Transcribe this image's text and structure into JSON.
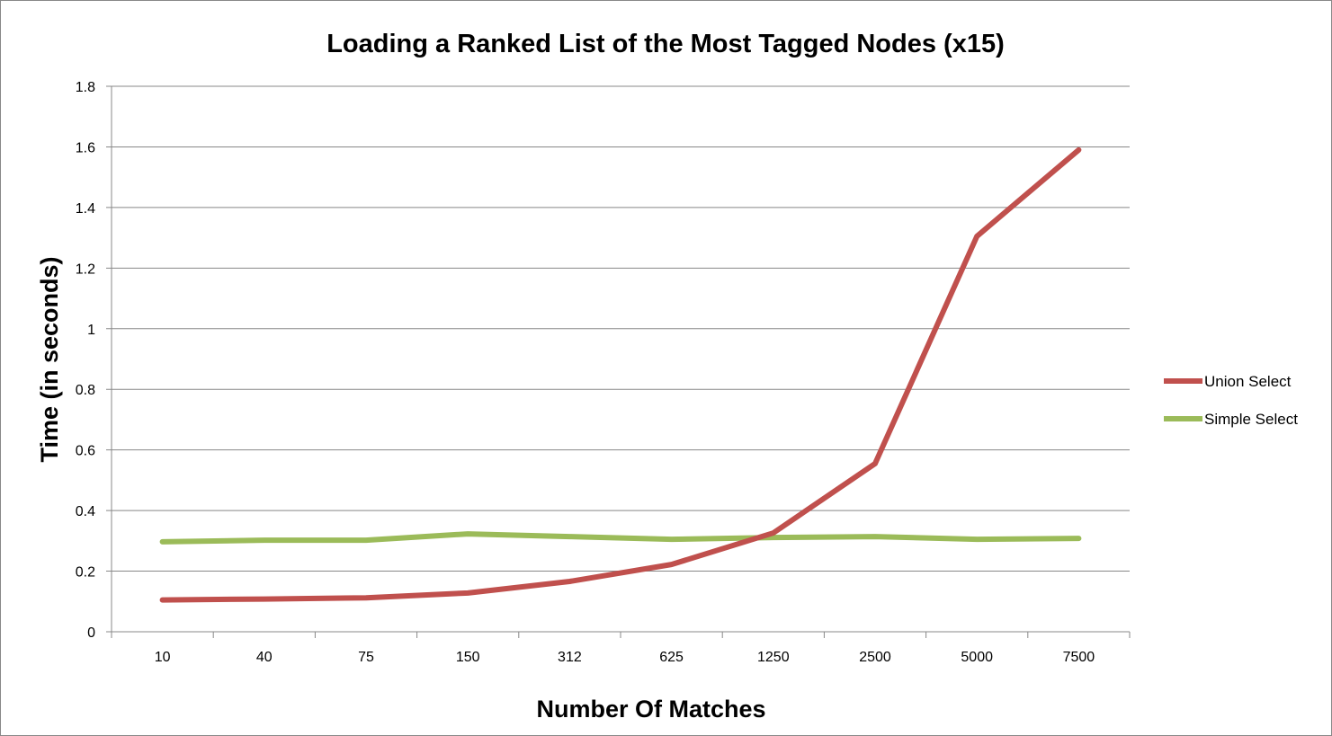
{
  "chart_data": {
    "type": "line",
    "title": "Loading a Ranked List of the Most Tagged Nodes (x15)",
    "xlabel": "Number Of Matches",
    "ylabel": "Time (in seconds)",
    "categories": [
      "10",
      "40",
      "75",
      "150",
      "312",
      "625",
      "1250",
      "2500",
      "5000",
      "7500"
    ],
    "ylim": [
      0,
      1.8
    ],
    "yticks": [
      "0",
      "0.2",
      "0.4",
      "0.6",
      "0.8",
      "1",
      "1.2",
      "1.4",
      "1.6",
      "1.8"
    ],
    "grid": true,
    "legend_position": "right",
    "series": [
      {
        "name": "Union Select",
        "color": "#c0504d",
        "values": [
          0.105,
          0.108,
          0.112,
          0.128,
          0.166,
          0.222,
          0.326,
          0.555,
          1.305,
          1.59
        ]
      },
      {
        "name": "Simple Select",
        "color": "#9bbb59",
        "values": [
          0.297,
          0.302,
          0.302,
          0.323,
          0.314,
          0.305,
          0.311,
          0.314,
          0.305,
          0.308
        ]
      }
    ]
  }
}
